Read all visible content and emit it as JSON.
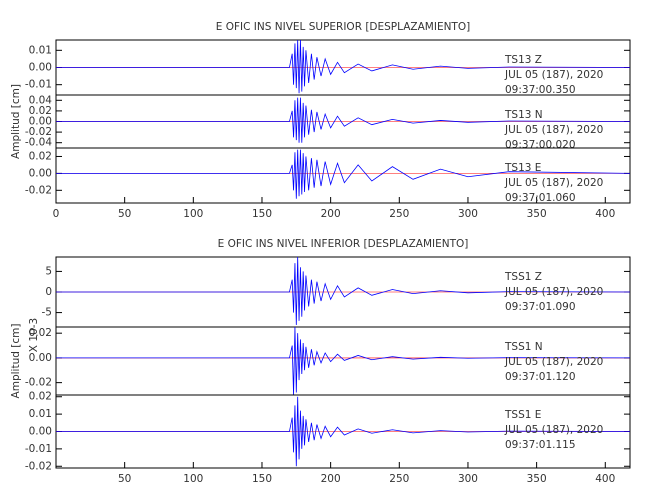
{
  "chart_data": [
    {
      "type": "line",
      "title": "E OFIC INS NIVEL SUPERIOR [DESPLAZAMIENTO]",
      "color": "#0000ff",
      "baseline_color": "#ff0000",
      "annotations": [
        "TS13   Z",
        "JUL 05 (187), 2020",
        "09:37:00.350"
      ],
      "xlim": [
        0,
        418
      ],
      "ylim": [
        -0.016,
        0.016
      ],
      "yticks": [
        {
          "value": 0.01,
          "label": "0.01"
        },
        {
          "value": 0,
          "label": "0.00"
        },
        {
          "value": -0.01,
          "label": "-0.01"
        }
      ],
      "x": [
        0,
        170,
        172,
        173,
        174,
        175,
        176,
        177,
        178,
        179,
        180,
        181,
        182,
        184,
        186,
        188,
        190,
        193,
        196,
        200,
        205,
        210,
        220,
        230,
        245,
        260,
        280,
        300,
        330,
        418
      ],
      "values": [
        0,
        0,
        0.008,
        -0.01,
        0.014,
        -0.012,
        0.016,
        -0.015,
        0.016,
        -0.014,
        0.012,
        -0.011,
        0.01,
        -0.009,
        0.008,
        -0.007,
        0.006,
        -0.005,
        0.005,
        -0.004,
        0.003,
        -0.003,
        0.002,
        -0.002,
        0.0015,
        -0.001,
        0.0008,
        -0.0005,
        0.0003,
        0
      ]
    },
    {
      "type": "line",
      "ylabel": "Amplitud [cm]",
      "color": "#0000ff",
      "baseline_color": "#ff0000",
      "annotations": [
        "TS13   N",
        "JUL 05 (187), 2020",
        "09:37:00.020"
      ],
      "xlim": [
        0,
        418
      ],
      "ylim": [
        -0.05,
        0.05
      ],
      "yticks": [
        {
          "value": 0.04,
          "label": "0.04"
        },
        {
          "value": 0.02,
          "label": "0.02"
        },
        {
          "value": 0,
          "label": "0.00"
        },
        {
          "value": -0.02,
          "label": "-0.02"
        },
        {
          "value": -0.04,
          "label": "-0.04"
        }
      ],
      "x": [
        0,
        170,
        172,
        173,
        174,
        175,
        176,
        177,
        178,
        179,
        180,
        181,
        182,
        184,
        186,
        188,
        190,
        193,
        196,
        200,
        205,
        210,
        220,
        230,
        245,
        260,
        280,
        300,
        330,
        418
      ],
      "values": [
        0,
        0,
        0.02,
        -0.03,
        0.04,
        -0.035,
        0.045,
        -0.04,
        0.045,
        -0.04,
        0.035,
        -0.03,
        0.03,
        -0.025,
        0.022,
        -0.02,
        0.018,
        -0.015,
        0.014,
        -0.012,
        0.01,
        -0.009,
        0.007,
        -0.006,
        0.004,
        -0.003,
        0.002,
        -0.0015,
        0.001,
        0
      ]
    },
    {
      "type": "line",
      "color": "#0000ff",
      "baseline_color": "#ff0000",
      "annotations": [
        "TS13   E",
        "JUL 05 (187), 2020",
        "09:37:01.060"
      ],
      "xlim": [
        0,
        418
      ],
      "ylim": [
        -0.035,
        0.03
      ],
      "yticks": [
        {
          "value": 0.02,
          "label": "0.02"
        },
        {
          "value": 0,
          "label": "0.00"
        },
        {
          "value": -0.02,
          "label": "-0.02"
        }
      ],
      "xticks": [
        0,
        50,
        100,
        150,
        200,
        250,
        300,
        350,
        400
      ],
      "x": [
        0,
        170,
        172,
        173,
        174,
        175,
        176,
        177,
        178,
        179,
        180,
        181,
        182,
        184,
        186,
        188,
        190,
        193,
        196,
        200,
        205,
        210,
        220,
        230,
        245,
        260,
        280,
        300,
        330,
        418
      ],
      "values": [
        0,
        0,
        0.01,
        -0.02,
        0.025,
        -0.03,
        0.028,
        -0.027,
        0.028,
        -0.025,
        0.024,
        -0.022,
        0.02,
        -0.02,
        0.018,
        -0.017,
        0.016,
        -0.015,
        0.014,
        -0.013,
        0.012,
        -0.011,
        0.01,
        -0.009,
        0.008,
        -0.007,
        0.005,
        -0.004,
        0.002,
        0
      ]
    },
    {
      "type": "line",
      "title": "E OFIC INS NIVEL INFERIOR [DESPLAZAMIENTO]",
      "scale_label": "X 10-3",
      "color": "#0000ff",
      "baseline_color": "#ff0000",
      "annotations": [
        "TSS1   Z",
        "JUL 05 (187), 2020",
        "09:37:01.090"
      ],
      "xlim": [
        0,
        418
      ],
      "ylim": [
        -8.5,
        8.5
      ],
      "yticks": [
        5,
        0,
        -5
      ],
      "x": [
        0,
        170,
        172,
        173,
        174,
        175,
        176,
        177,
        178,
        179,
        180,
        181,
        182,
        184,
        186,
        188,
        190,
        193,
        196,
        200,
        205,
        210,
        220,
        230,
        245,
        260,
        280,
        300,
        330,
        418
      ],
      "values": [
        0,
        0,
        3,
        -5,
        7,
        -8,
        8.5,
        -7,
        6,
        -6,
        5,
        -4.5,
        4,
        -3.5,
        3,
        -2.8,
        2.5,
        -2.2,
        2,
        -1.8,
        1.5,
        -1.2,
        1,
        -0.8,
        0.6,
        -0.4,
        0.3,
        -0.2,
        0.1,
        0
      ]
    },
    {
      "type": "line",
      "ylabel": "Amplitud [cm]",
      "color": "#0000ff",
      "baseline_color": "#ff0000",
      "annotations": [
        "TSS1   N",
        "JUL 05 (187), 2020",
        "09:37:01.120"
      ],
      "xlim": [
        0,
        418
      ],
      "ylim": [
        -0.03,
        0.025
      ],
      "yticks": [
        {
          "value": 0.02,
          "label": "0.02"
        },
        {
          "value": 0,
          "label": "0.00"
        },
        {
          "value": -0.02,
          "label": "-0.02"
        }
      ],
      "x": [
        0,
        170,
        172,
        173,
        174,
        175,
        176,
        177,
        178,
        179,
        180,
        181,
        182,
        184,
        186,
        188,
        190,
        193,
        196,
        200,
        205,
        210,
        220,
        230,
        245,
        260,
        280,
        300,
        330,
        418
      ],
      "values": [
        0,
        0,
        0.01,
        -0.03,
        0.025,
        -0.028,
        0.02,
        -0.018,
        0.015,
        -0.013,
        0.012,
        -0.01,
        0.009,
        -0.008,
        0.007,
        -0.006,
        0.005,
        -0.004,
        0.004,
        -0.003,
        0.003,
        -0.002,
        0.002,
        -0.0015,
        0.001,
        -0.001,
        0.0005,
        -0.0003,
        0.0002,
        0
      ]
    },
    {
      "type": "line",
      "color": "#0000ff",
      "baseline_color": "#ff0000",
      "annotations": [
        "TSS1   E",
        "JUL 05 (187), 2020",
        "09:37:01.115"
      ],
      "xlim": [
        0,
        418
      ],
      "ylim": [
        -0.021,
        0.021
      ],
      "yticks": [
        {
          "value": 0.02,
          "label": "0.02"
        },
        {
          "value": 0.01,
          "label": "0.01"
        },
        {
          "value": 0,
          "label": "0.00"
        },
        {
          "value": -0.01,
          "label": "-0.01"
        },
        {
          "value": -0.02,
          "label": "-0.02"
        }
      ],
      "xticks": [
        50,
        100,
        150,
        200,
        250,
        300,
        350,
        400
      ],
      "x": [
        0,
        170,
        172,
        173,
        174,
        175,
        176,
        177,
        178,
        179,
        180,
        181,
        182,
        184,
        186,
        188,
        190,
        193,
        196,
        200,
        205,
        210,
        220,
        230,
        245,
        260,
        280,
        300,
        330,
        418
      ],
      "values": [
        0,
        0,
        0.008,
        -0.012,
        0.015,
        -0.02,
        0.02,
        -0.016,
        0.012,
        -0.01,
        0.009,
        -0.008,
        0.007,
        -0.006,
        0.005,
        -0.005,
        0.004,
        -0.004,
        0.003,
        -0.003,
        0.0025,
        -0.002,
        0.0015,
        -0.001,
        0.001,
        -0.0008,
        0.0005,
        -0.0003,
        0.0002,
        0
      ]
    }
  ]
}
